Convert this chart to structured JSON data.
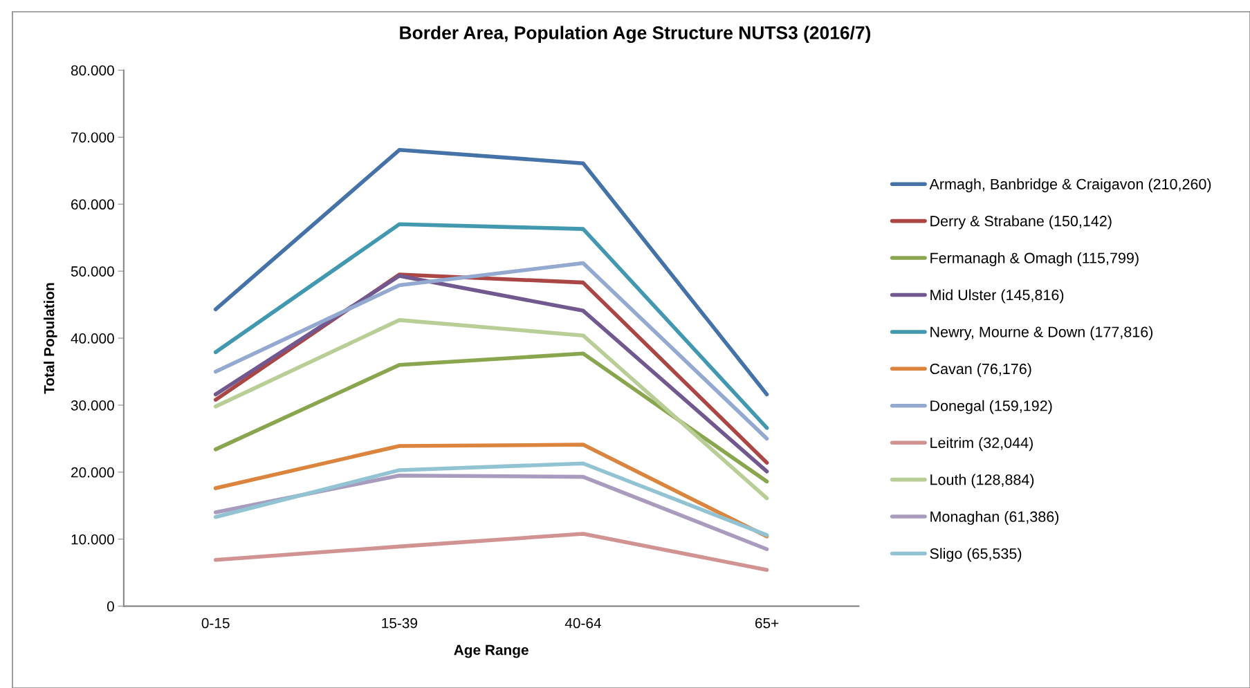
{
  "chart_data": {
    "type": "line",
    "title": "Border Area, Population Age Structure NUTS3 (2016/7)",
    "xlabel": "Age Range",
    "ylabel": "Total Population",
    "categories": [
      "0-15",
      "15-39",
      "40-64",
      "65+"
    ],
    "ylim": [
      0,
      80000
    ],
    "yticks": [
      0,
      {
        "value": 10000,
        "label": "10.000"
      },
      {
        "value": 20000,
        "label": "20.000"
      },
      {
        "value": 30000,
        "label": "30.000"
      },
      {
        "value": 40000,
        "label": "40.000"
      },
      {
        "value": 50000,
        "label": "50.000"
      },
      {
        "value": 60000,
        "label": "60.000"
      },
      {
        "value": 70000,
        "label": "70.000"
      },
      {
        "value": 80000,
        "label": "80.000"
      }
    ],
    "grid": false,
    "legend": "right",
    "marker": "none",
    "line_style": "solid",
    "series": [
      {
        "name": "Armagh, Banbridge & Craigavon (210,260)",
        "color": "#4572a7",
        "values": [
          44300,
          68100,
          66100,
          31600
        ]
      },
      {
        "name": "Derry & Strabane (150,142)",
        "color": "#aa4643",
        "values": [
          30800,
          49500,
          48300,
          21400
        ]
      },
      {
        "name": "Fermanagh & Omagh (115,799)",
        "color": "#89a54e",
        "values": [
          23400,
          36000,
          37700,
          18600
        ]
      },
      {
        "name": "Mid Ulster (145,816)",
        "color": "#71588f",
        "values": [
          31600,
          49300,
          44100,
          20100
        ]
      },
      {
        "name": "Newry, Mourne & Down (177,816)",
        "color": "#4198af",
        "values": [
          37900,
          57000,
          56300,
          26600
        ]
      },
      {
        "name": "Cavan (76,176)",
        "color": "#db843d",
        "values": [
          17600,
          23900,
          24100,
          10400
        ]
      },
      {
        "name": "Donegal (159,192)",
        "color": "#93a9cf",
        "values": [
          35000,
          47900,
          51200,
          25000
        ]
      },
      {
        "name": "Leitrim (32,044)",
        "color": "#d19392",
        "values": [
          6900,
          8900,
          10800,
          5400
        ]
      },
      {
        "name": "Louth (128,884)",
        "color": "#b9cd96",
        "values": [
          29800,
          42700,
          40400,
          16100
        ]
      },
      {
        "name": "Monaghan (61,386)",
        "color": "#a99bbd",
        "values": [
          14000,
          19500,
          19300,
          8500
        ]
      },
      {
        "name": "Sligo (65,535)",
        "color": "#92c3d3",
        "values": [
          13300,
          20300,
          21300,
          10600
        ]
      }
    ]
  }
}
